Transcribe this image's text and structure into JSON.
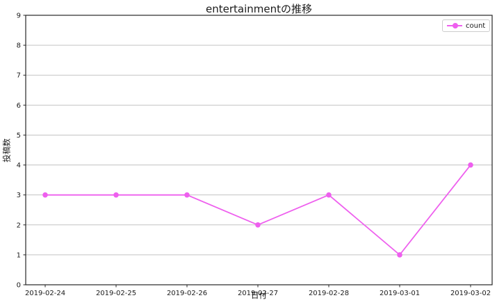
{
  "figure": {
    "background": "#ffffff"
  },
  "chart_data": {
    "type": "line",
    "title": "entertainmentの推移",
    "xlabel": "日付",
    "ylabel": "投稿数",
    "x": [
      "2019-02-24",
      "2019-02-25",
      "2019-02-26",
      "2019-02-27",
      "2019-02-28",
      "2019-03-01",
      "2019-03-02"
    ],
    "series": [
      {
        "name": "count",
        "values": [
          3,
          3,
          3,
          2,
          3,
          1,
          4
        ]
      }
    ],
    "ylim": [
      0,
      9
    ],
    "yticks": [
      0,
      1,
      2,
      3,
      4,
      5,
      6,
      7,
      8,
      9
    ],
    "grid": "horizontal-only",
    "legend_position": "upper-right",
    "colors": {
      "line": "#ee5fee",
      "grid": "#c3c3c3",
      "spine": "#262626",
      "text": "#1a1a1a",
      "legend_border": "#cccccc"
    }
  }
}
